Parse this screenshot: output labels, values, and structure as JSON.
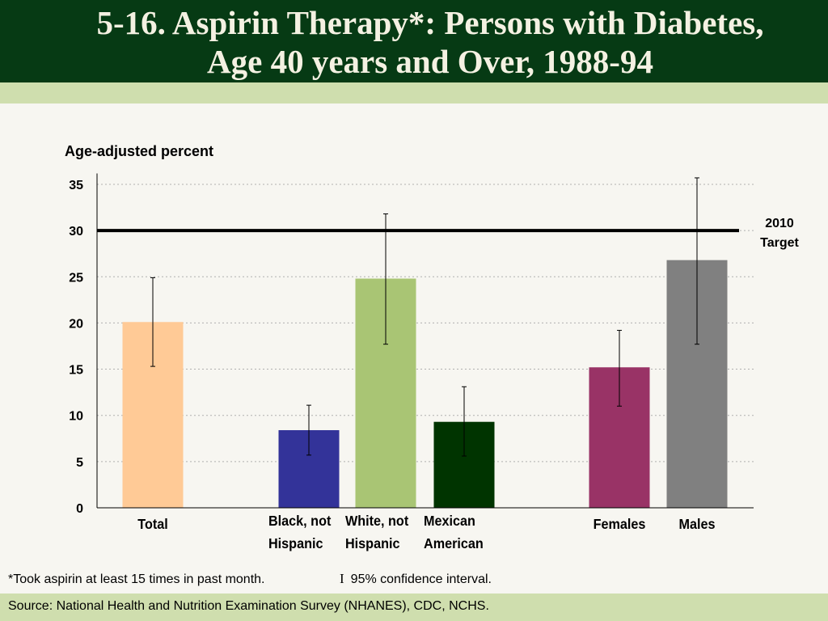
{
  "header": {
    "title_line1": "5-16.  Aspirin Therapy*: Persons with Diabetes,",
    "title_line2": "Age 40 years and Over, 1988-94"
  },
  "colors": {
    "header_bg": "#063a14",
    "band_bg": "#cfdeae",
    "page_bg": "#f7f6f1"
  },
  "chart_data": {
    "type": "bar",
    "title": "",
    "ylabel": "Age-adjusted percent",
    "ylim": [
      0,
      36
    ],
    "yticks": [
      0,
      5,
      10,
      15,
      20,
      25,
      30,
      35
    ],
    "grid": true,
    "categories": [
      {
        "lines": [
          "Total"
        ],
        "value": 20.1,
        "ci": [
          15.3,
          24.9
        ],
        "color": "#ffca96"
      },
      {
        "lines": [
          "Black, not",
          "Hispanic"
        ],
        "value": 8.4,
        "ci": [
          5.7,
          11.1
        ],
        "color": "#333399"
      },
      {
        "lines": [
          "White, not",
          "Hispanic"
        ],
        "value": 24.8,
        "ci": [
          17.7,
          31.8
        ],
        "color": "#a9c574"
      },
      {
        "lines": [
          "Mexican",
          "American"
        ],
        "value": 9.3,
        "ci": [
          5.6,
          13.1
        ],
        "color": "#003400"
      },
      {
        "lines": [
          "Females"
        ],
        "value": 15.2,
        "ci": [
          11.0,
          19.2
        ],
        "color": "#993366"
      },
      {
        "lines": [
          "Males"
        ],
        "value": 26.8,
        "ci": [
          17.7,
          35.7
        ],
        "color": "#808080"
      }
    ],
    "target": {
      "value": 30,
      "label_line1": "2010",
      "label_line2": "Target"
    }
  },
  "footer": {
    "footnote": "*Took aspirin at least 15 times in past month.",
    "ci_glyph": "I",
    "ci_text": "95% confidence interval.",
    "source": "Source: National Health and Nutrition Examination Survey (NHANES), CDC, NCHS."
  }
}
